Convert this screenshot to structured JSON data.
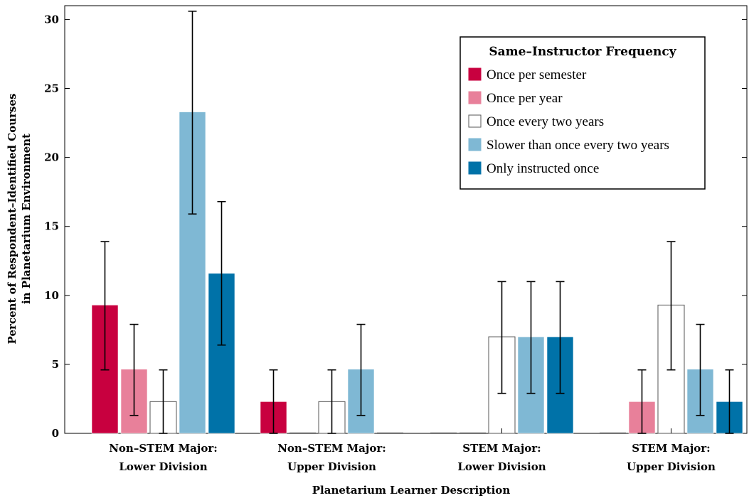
{
  "chart_data": {
    "type": "bar",
    "xlabel": "Planetarium Learner Description",
    "ylabel_lines": [
      "Percent of Respondent–Identified Courses",
      "in Planetarium Environment"
    ],
    "ylim": [
      0,
      31
    ],
    "yticks": [
      0,
      5,
      10,
      15,
      20,
      25,
      30
    ],
    "categories": [
      {
        "line1": "Non–STEM Major:",
        "line2": "Lower Division"
      },
      {
        "line1": "Non–STEM Major:",
        "line2": "Upper Division"
      },
      {
        "line1": "STEM Major:",
        "line2": "Lower Division"
      },
      {
        "line1": "STEM Major:",
        "line2": "Upper Division"
      }
    ],
    "legend": {
      "title": "Same–Instructor Frequency",
      "placement": "top-right"
    },
    "series": [
      {
        "name": "Once per semester",
        "color": "#c8003f",
        "values": [
          9.3,
          2.3,
          0,
          0
        ],
        "err_low": [
          4.6,
          0,
          null,
          null
        ],
        "err_high": [
          13.9,
          4.6,
          null,
          null
        ]
      },
      {
        "name": "Once per year",
        "color": "#e8809a",
        "values": [
          4.65,
          0,
          0,
          2.3
        ],
        "err_low": [
          1.3,
          null,
          null,
          0
        ],
        "err_high": [
          7.9,
          null,
          null,
          4.6
        ]
      },
      {
        "name": "Once every two years",
        "color": "#ffffff",
        "values": [
          2.3,
          2.3,
          7.0,
          9.3
        ],
        "err_low": [
          0,
          0,
          2.9,
          4.6
        ],
        "err_high": [
          4.6,
          4.6,
          11.0,
          13.9
        ]
      },
      {
        "name": "Slower than once every two years",
        "color": "#7fb8d4",
        "values": [
          23.3,
          4.65,
          7.0,
          4.65
        ],
        "err_low": [
          15.9,
          1.3,
          2.9,
          1.3
        ],
        "err_high": [
          30.6,
          7.9,
          11.0,
          7.9
        ]
      },
      {
        "name": "Only instructed once",
        "color": "#0072a8",
        "values": [
          11.6,
          0,
          7.0,
          2.3
        ],
        "err_low": [
          6.4,
          null,
          2.9,
          0
        ],
        "err_high": [
          16.8,
          null,
          11.0,
          4.6
        ]
      }
    ]
  }
}
